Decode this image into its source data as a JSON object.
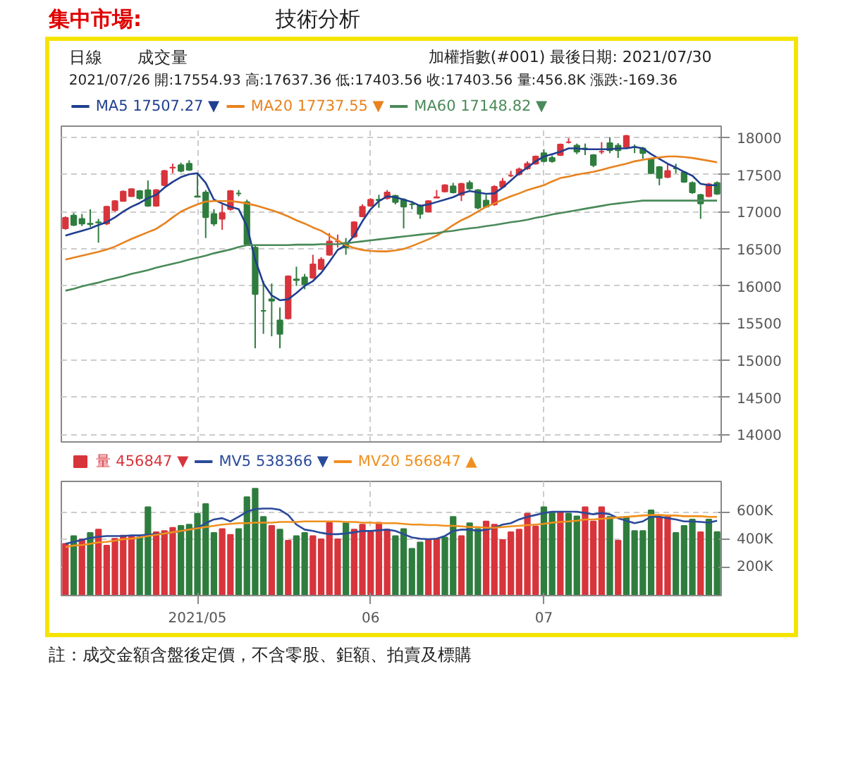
{
  "chart_data": [
    {
      "type": "candlestick",
      "title": "集中市場:",
      "subtitle": "技術分析",
      "annotations": [
        "日線",
        "成交量",
        "加權指數(#001)",
        "最後日期: 2021/07/30",
        "2021/07/26 開:17554.93 高:17637.36 低:17403.56 收:17403.56 量:456.8K 漲跌:-169.36"
      ],
      "categories": [
        null,
        null,
        null,
        null,
        null,
        null,
        null,
        null,
        null,
        null,
        null,
        null,
        null,
        null,
        null,
        null,
        "2021/05",
        null,
        null,
        null,
        null,
        null,
        null,
        null,
        null,
        null,
        null,
        null,
        null,
        null,
        null,
        null,
        null,
        null,
        null,
        null,
        null,
        "06",
        null,
        null,
        null,
        null,
        null,
        null,
        null,
        null,
        null,
        null,
        null,
        null,
        null,
        null,
        null,
        null,
        null,
        null,
        null,
        null,
        "07",
        null,
        null,
        null,
        null,
        null,
        null,
        null,
        null,
        null,
        null,
        null,
        null,
        null,
        null,
        null,
        null,
        null,
        null,
        null,
        null,
        null
      ],
      "ohlc": [
        [
          16774,
          16936,
          16755,
          16916
        ],
        [
          16948,
          16981,
          16806,
          16819
        ],
        [
          16903,
          16968,
          16806,
          16839
        ],
        [
          16839,
          17032,
          16794,
          16832
        ],
        [
          16858,
          16903,
          16581,
          16852
        ],
        [
          16839,
          17077,
          16819,
          17065
        ],
        [
          17019,
          17155,
          17000,
          17142
        ],
        [
          17142,
          17284,
          17135,
          17271
        ],
        [
          17206,
          17310,
          17200,
          17303
        ],
        [
          17277,
          17290,
          17161,
          17181
        ],
        [
          17290,
          17419,
          17065,
          17077
        ],
        [
          17077,
          17303,
          17065,
          17290
        ],
        [
          17355,
          17561,
          17342,
          17548
        ],
        [
          17590,
          17645,
          17516,
          17593
        ],
        [
          17626,
          17658,
          17529,
          17548
        ],
        [
          17645,
          17690,
          17548,
          17561
        ],
        [
          17206,
          17510,
          17190,
          17200
        ],
        [
          17258,
          17290,
          16645,
          16923
        ],
        [
          16968,
          17032,
          16806,
          16839
        ],
        [
          16903,
          17097,
          16755,
          16981
        ],
        [
          17032,
          17290,
          17013,
          17277
        ],
        [
          17245,
          17290,
          17206,
          17245
        ],
        [
          17129,
          17161,
          16548,
          16561
        ],
        [
          16516,
          16548,
          15161,
          15891
        ],
        [
          15665,
          16065,
          15355,
          15665
        ],
        [
          15820,
          16032,
          15322,
          15800
        ],
        [
          15536,
          15710,
          15161,
          15355
        ],
        [
          15562,
          16142,
          15549,
          16129
        ],
        [
          16090,
          16258,
          16000,
          16077
        ],
        [
          16116,
          16161,
          15955,
          16020
        ],
        [
          16110,
          16419,
          16097,
          16290
        ],
        [
          16226,
          16387,
          16213,
          16355
        ],
        [
          16419,
          16710,
          16406,
          16600
        ],
        [
          16600,
          16690,
          16516,
          16600
        ],
        [
          16581,
          16645,
          16419,
          16516
        ],
        [
          16664,
          16871,
          16645,
          16858
        ],
        [
          16935,
          17097,
          16923,
          17065
        ],
        [
          17077,
          17181,
          17065,
          17161
        ],
        [
          17161,
          17226,
          17052,
          17155
        ],
        [
          17181,
          17290,
          17161,
          17258
        ],
        [
          17213,
          17226,
          17097,
          17129
        ],
        [
          17161,
          17181,
          16774,
          17065
        ],
        [
          17097,
          17142,
          17032,
          17097
        ],
        [
          17077,
          17097,
          16903,
          16968
        ],
        [
          17000,
          17155,
          16990,
          17142
        ],
        [
          17187,
          17290,
          17181,
          17194
        ],
        [
          17271,
          17368,
          17258,
          17355
        ],
        [
          17342,
          17387,
          17245,
          17258
        ],
        [
          17226,
          17387,
          17142,
          17374
        ],
        [
          17387,
          17419,
          17290,
          17310
        ],
        [
          17290,
          17303,
          17032,
          17051
        ],
        [
          17148,
          17226,
          17052,
          17065
        ],
        [
          17097,
          17355,
          17077,
          17335
        ],
        [
          17335,
          17452,
          17322,
          17406
        ],
        [
          17484,
          17548,
          17464,
          17484
        ],
        [
          17503,
          17593,
          17484,
          17568
        ],
        [
          17580,
          17677,
          17561,
          17645
        ],
        [
          17645,
          17755,
          17632,
          17742
        ],
        [
          17787,
          17839,
          17664,
          17677
        ],
        [
          17723,
          17755,
          17658,
          17677
        ],
        [
          17761,
          17916,
          17748,
          17903
        ],
        [
          17935,
          17987,
          17916,
          17935
        ],
        [
          17890,
          17916,
          17774,
          17806
        ],
        [
          17852,
          17916,
          17761,
          17852
        ],
        [
          17761,
          17774,
          17600,
          17626
        ],
        [
          17806,
          17935,
          17774,
          17806
        ],
        [
          17922,
          18000,
          17787,
          17826
        ],
        [
          17890,
          17922,
          17723,
          17826
        ],
        [
          17871,
          18032,
          17852,
          18019
        ],
        [
          17871,
          17903,
          17787,
          17871
        ],
        [
          17852,
          17871,
          17710,
          17787
        ],
        [
          17710,
          17723,
          17503,
          17516
        ],
        [
          17600,
          17613,
          17355,
          17452
        ],
        [
          17464,
          17645,
          17452,
          17548
        ],
        [
          17581,
          17645,
          17516,
          17581
        ],
        [
          17529,
          17548,
          17387,
          17400
        ],
        [
          17387,
          17406,
          17239,
          17258
        ],
        [
          17226,
          17239,
          16903,
          17110
        ],
        [
          17206,
          17387,
          17194,
          17368
        ],
        [
          17387,
          17406,
          17226,
          17239
        ]
      ],
      "colors": [
        "#d8343c",
        "#2f7d3e",
        "#2f7d3e",
        "#2f7d3e",
        "#2f7d3e",
        "#d8343c",
        "#d8343c",
        "#d8343c",
        "#d8343c",
        "#2f7d3e",
        "#2f7d3e",
        "#d8343c",
        "#d8343c",
        "#d8343c",
        "#2f7d3e",
        "#2f7d3e",
        "#2f7d3e",
        "#2f7d3e",
        "#2f7d3e",
        "#d8343c",
        "#d8343c",
        "#2f7d3e",
        "#2f7d3e",
        "#2f7d3e",
        "#2f7d3e",
        "#2f7d3e",
        "#2f7d3e",
        "#d8343c",
        "#2f7d3e",
        "#2f7d3e",
        "#d8343c",
        "#d8343c",
        "#d8343c",
        "#d8343c",
        "#2f7d3e",
        "#d8343c",
        "#d8343c",
        "#d8343c",
        "#2f7d3e",
        "#d8343c",
        "#2f7d3e",
        "#2f7d3e",
        "#2f7d3e",
        "#2f7d3e",
        "#d8343c",
        "#d8343c",
        "#d8343c",
        "#2f7d3e",
        "#d8343c",
        "#2f7d3e",
        "#2f7d3e",
        "#2f7d3e",
        "#d8343c",
        "#d8343c",
        "#d8343c",
        "#d8343c",
        "#d8343c",
        "#d8343c",
        "#2f7d3e",
        "#2f7d3e",
        "#d8343c",
        "#d8343c",
        "#2f7d3e",
        "#2f7d3e",
        "#2f7d3e",
        "#d8343c",
        "#2f7d3e",
        "#2f7d3e",
        "#d8343c",
        "#2f7d3e",
        "#2f7d3e",
        "#2f7d3e",
        "#2f7d3e",
        "#d8343c",
        "#2f7d3e",
        "#2f7d3e",
        "#2f7d3e",
        "#2f7d3e",
        "#d8343c",
        "#2f7d3e"
      ],
      "series": [
        {
          "type": "line",
          "name": "MA5 17507.27 ▼",
          "color": "#1f3f8f",
          "values": [
            16677,
            16710,
            16742,
            16774,
            16819,
            16858,
            16923,
            17000,
            17065,
            17116,
            17181,
            17226,
            17323,
            17400,
            17464,
            17503,
            17516,
            17387,
            17161,
            17110,
            17065,
            17032,
            16807,
            16355,
            16033,
            15871,
            15807,
            15820,
            15904,
            16000,
            16065,
            16174,
            16323,
            16484,
            16549,
            16677,
            16871,
            17032,
            17142,
            17206,
            17194,
            17161,
            17129,
            17077,
            17097,
            17129,
            17161,
            17194,
            17245,
            17277,
            17258,
            17239,
            17245,
            17323,
            17419,
            17516,
            17593,
            17677,
            17742,
            17774,
            17806,
            17851,
            17851,
            17839,
            17839,
            17839,
            17839,
            17851,
            17851,
            17871,
            17851,
            17774,
            17710,
            17645,
            17593,
            17535,
            17484,
            17374,
            17355,
            17355
          ]
        },
        {
          "type": "line",
          "name": "MA20 17737.55 ▼",
          "color": "#e8821e",
          "values": [
            16355,
            16381,
            16407,
            16432,
            16458,
            16490,
            16529,
            16581,
            16632,
            16677,
            16723,
            16768,
            16839,
            16923,
            17000,
            17052,
            17097,
            17135,
            17142,
            17142,
            17142,
            17129,
            17110,
            17084,
            17052,
            17019,
            16981,
            16936,
            16884,
            16839,
            16787,
            16742,
            16677,
            16613,
            16549,
            16510,
            16484,
            16471,
            16465,
            16465,
            16478,
            16497,
            16536,
            16581,
            16626,
            16677,
            16742,
            16819,
            16884,
            16936,
            17000,
            17065,
            17110,
            17161,
            17206,
            17245,
            17290,
            17323,
            17355,
            17406,
            17452,
            17471,
            17497,
            17516,
            17535,
            17561,
            17593,
            17619,
            17645,
            17677,
            17697,
            17716,
            17729,
            17742,
            17742,
            17735,
            17722,
            17703,
            17684,
            17664
          ]
        },
        {
          "type": "line",
          "name": "MA60 17148.82 ▼",
          "color": "#4a8a5a",
          "values": [
            15936,
            15962,
            15994,
            16020,
            16045,
            16078,
            16104,
            16129,
            16162,
            16187,
            16213,
            16245,
            16271,
            16297,
            16323,
            16355,
            16381,
            16407,
            16439,
            16465,
            16490,
            16523,
            16549,
            16549,
            16549,
            16549,
            16549,
            16549,
            16555,
            16555,
            16555,
            16561,
            16561,
            16561,
            16574,
            16587,
            16600,
            16613,
            16626,
            16639,
            16652,
            16665,
            16677,
            16690,
            16703,
            16710,
            16729,
            16742,
            16761,
            16774,
            16787,
            16806,
            16819,
            16839,
            16858,
            16871,
            16890,
            16916,
            16936,
            16961,
            16981,
            17000,
            17019,
            17039,
            17058,
            17077,
            17097,
            17110,
            17123,
            17135,
            17148,
            17148,
            17148,
            17148,
            17148,
            17148,
            17148,
            17148,
            17148,
            17148
          ]
        }
      ],
      "ylim": [
        13900,
        18150
      ],
      "yticks": [
        14000,
        14500,
        15000,
        15500,
        16000,
        16500,
        17000,
        17500,
        18000
      ],
      "grid": true,
      "legend": "top left",
      "tick_labels": "y"
    },
    {
      "type": "bar",
      "annotations": [
        "註：成交金額含盤後定價，不含零股、鉅額、拍賣及標購"
      ],
      "categories": [
        null,
        null,
        null,
        null,
        null,
        null,
        null,
        null,
        null,
        null,
        null,
        null,
        null,
        null,
        null,
        null,
        "2021/05",
        null,
        null,
        null,
        null,
        null,
        null,
        null,
        null,
        null,
        null,
        null,
        null,
        null,
        null,
        null,
        null,
        null,
        null,
        null,
        null,
        "06",
        null,
        null,
        null,
        null,
        null,
        null,
        null,
        null,
        null,
        null,
        null,
        null,
        null,
        null,
        null,
        null,
        null,
        null,
        null,
        null,
        "07",
        null,
        null,
        null,
        null,
        null,
        null,
        null,
        null,
        null,
        null,
        null,
        null,
        null,
        null,
        null,
        null,
        null,
        null,
        null,
        null,
        null
      ],
      "series": [
        {
          "name": "量 456847 ▼",
          "colors": [
            "#d8343c",
            "#2f7d3e",
            "#d8343c",
            "#2f7d3e",
            "#d8343c",
            "#d8343c",
            "#d8343c",
            "#d8343c",
            "#d8343c",
            "#2f7d3e",
            "#2f7d3e",
            "#d8343c",
            "#d8343c",
            "#d8343c",
            "#2f7d3e",
            "#2f7d3e",
            "#2f7d3e",
            "#2f7d3e",
            "#2f7d3e",
            "#d8343c",
            "#d8343c",
            "#2f7d3e",
            "#2f7d3e",
            "#2f7d3e",
            "#2f7d3e",
            "#d8343c",
            "#2f7d3e",
            "#d8343c",
            "#2f7d3e",
            "#2f7d3e",
            "#d8343c",
            "#d8343c",
            "#d8343c",
            "#d8343c",
            "#2f7d3e",
            "#d8343c",
            "#d8343c",
            "#d8343c",
            "#d8343c",
            "#d8343c",
            "#2f7d3e",
            "#2f7d3e",
            "#2f7d3e",
            "#2f7d3e",
            "#d8343c",
            "#d8343c",
            "#2f7d3e",
            "#2f7d3e",
            "#d8343c",
            "#2f7d3e",
            "#2f7d3e",
            "#d8343c",
            "#d8343c",
            "#d8343c",
            "#d8343c",
            "#d8343c",
            "#d8343c",
            "#d8343c",
            "#2f7d3e",
            "#2f7d3e",
            "#d8343c",
            "#2f7d3e",
            "#2f7d3e",
            "#d8343c",
            "#d8343c",
            "#d8343c",
            "#2f7d3e",
            "#d8343c",
            "#2f7d3e",
            "#2f7d3e",
            "#2f7d3e",
            "#2f7d3e",
            "#d8343c",
            "#d8343c",
            "#2f7d3e",
            "#2f7d3e",
            "#2f7d3e",
            "#d8343c",
            "#2f7d3e",
            "#2f7d3e"
          ],
          "values": [
            372000,
            428000,
            405000,
            451000,
            474000,
            359000,
            409000,
            432000,
            428000,
            418000,
            635000,
            455000,
            464000,
            487000,
            501000,
            510000,
            589000,
            658000,
            451000,
            478000,
            437000,
            478000,
            708000,
            768000,
            566000,
            501000,
            474000,
            395000,
            428000,
            451000,
            428000,
            405000,
            524000,
            405000,
            520000,
            474000,
            510000,
            455000,
            524000,
            474000,
            428000,
            478000,
            336000,
            382000,
            405000,
            405000,
            418000,
            566000,
            428000,
            520000,
            478000,
            533000,
            510000,
            400000,
            455000,
            474000,
            589000,
            497000,
            635000,
            593000,
            602000,
            589000,
            570000,
            635000,
            533000,
            635000,
            566000,
            395000,
            566000,
            464000,
            464000,
            612000,
            566000,
            566000,
            451000,
            501000,
            547000,
            455000,
            547000,
            457000
          ]
        },
        {
          "type": "line",
          "name": "MV5 538366 ▼",
          "color": "#2a4a9a",
          "values": [
            372000,
            386000,
            400000,
            414000,
            423000,
            428000,
            428000,
            428000,
            432000,
            432000,
            437000,
            441000,
            446000,
            455000,
            464000,
            474000,
            487000,
            520000,
            547000,
            556000,
            533000,
            566000,
            602000,
            621000,
            625000,
            625000,
            616000,
            579000,
            510000,
            474000,
            464000,
            451000,
            441000,
            441000,
            446000,
            455000,
            464000,
            464000,
            469000,
            474000,
            464000,
            441000,
            418000,
            409000,
            405000,
            409000,
            428000,
            464000,
            474000,
            474000,
            464000,
            474000,
            487000,
            510000,
            520000,
            547000,
            566000,
            579000,
            593000,
            602000,
            602000,
            602000,
            602000,
            593000,
            584000,
            593000,
            584000,
            556000,
            538000,
            520000,
            533000,
            566000,
            566000,
            556000,
            547000,
            533000,
            533000,
            529000,
            524000,
            538000
          ]
        },
        {
          "type": "line",
          "name": "MV20 566847 ▲",
          "color": "#f0901e",
          "values": [
            349000,
            359000,
            363000,
            372000,
            382000,
            386000,
            395000,
            405000,
            409000,
            418000,
            428000,
            437000,
            446000,
            455000,
            464000,
            474000,
            483000,
            492000,
            501000,
            510000,
            515000,
            520000,
            520000,
            524000,
            524000,
            524000,
            529000,
            529000,
            529000,
            533000,
            533000,
            533000,
            533000,
            533000,
            529000,
            529000,
            524000,
            524000,
            520000,
            520000,
            520000,
            515000,
            510000,
            510000,
            506000,
            506000,
            501000,
            501000,
            497000,
            492000,
            492000,
            487000,
            487000,
            492000,
            497000,
            501000,
            506000,
            510000,
            515000,
            524000,
            529000,
            533000,
            538000,
            547000,
            547000,
            552000,
            556000,
            561000,
            566000,
            570000,
            575000,
            579000,
            579000,
            575000,
            575000,
            570000,
            570000,
            570000,
            566000,
            566000
          ]
        }
      ],
      "ylim": [
        0,
        820000
      ],
      "yticks": [
        {
          "value": 200000,
          "label": "200K"
        },
        {
          "value": 400000,
          "label": "400K"
        },
        {
          "value": 600000,
          "label": "600K"
        }
      ],
      "grid": true,
      "legend": "top left"
    }
  ]
}
